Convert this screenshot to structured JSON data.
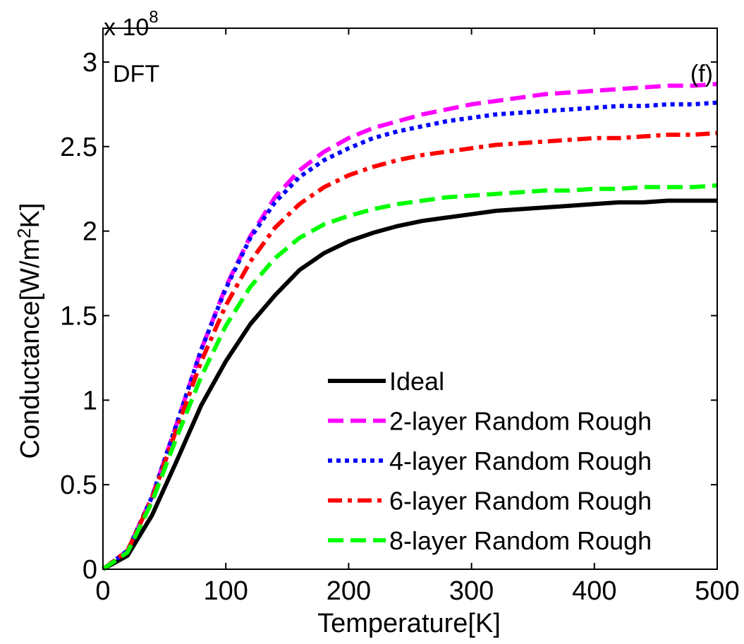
{
  "chart_data": {
    "type": "line",
    "title": "",
    "xlabel": "Temperature[K]",
    "ylabel_parts": {
      "before": "Conductance[W/m",
      "sup": "2",
      "after": "K]"
    },
    "exponent_label": {
      "base": "x 10",
      "power": "8"
    },
    "annotations": {
      "left": "DFT",
      "right": "(f)"
    },
    "xlim": [
      0,
      500
    ],
    "ylim": [
      0,
      3.2
    ],
    "x_ticks": [
      0,
      100,
      200,
      300,
      400,
      500
    ],
    "x_tick_labels": [
      "0",
      "100",
      "200",
      "300",
      "400",
      "500"
    ],
    "y_ticks": [
      0,
      0.5,
      1,
      1.5,
      2,
      2.5,
      3
    ],
    "y_tick_labels": [
      "0",
      "0.5",
      "1",
      "1.5",
      "2",
      "2.5",
      "3"
    ],
    "y_scale_note": "values in units of 10^8",
    "grid": false,
    "legend_position": "bottom-right",
    "x": [
      0,
      20,
      40,
      60,
      80,
      100,
      120,
      140,
      160,
      180,
      200,
      220,
      240,
      260,
      280,
      300,
      320,
      340,
      360,
      380,
      400,
      420,
      440,
      460,
      480,
      500
    ],
    "series": [
      {
        "name": "Ideal",
        "color": "#000000",
        "style": "solid",
        "values": [
          0.0,
          0.08,
          0.32,
          0.64,
          0.97,
          1.23,
          1.45,
          1.62,
          1.77,
          1.87,
          1.94,
          1.99,
          2.03,
          2.06,
          2.08,
          2.1,
          2.12,
          2.13,
          2.14,
          2.15,
          2.16,
          2.17,
          2.17,
          2.18,
          2.18,
          2.18
        ]
      },
      {
        "name": "2-layer Random Rough",
        "color": "#ff00ff",
        "style": "dashed",
        "values": [
          0.0,
          0.11,
          0.43,
          0.86,
          1.3,
          1.67,
          1.97,
          2.2,
          2.36,
          2.47,
          2.55,
          2.61,
          2.65,
          2.69,
          2.72,
          2.75,
          2.77,
          2.79,
          2.81,
          2.82,
          2.83,
          2.84,
          2.85,
          2.86,
          2.86,
          2.87
        ]
      },
      {
        "name": "4-layer Random Rough",
        "color": "#0000ff",
        "style": "dotted",
        "values": [
          0.0,
          0.11,
          0.43,
          0.86,
          1.3,
          1.66,
          1.96,
          2.17,
          2.32,
          2.42,
          2.49,
          2.55,
          2.59,
          2.62,
          2.65,
          2.67,
          2.69,
          2.7,
          2.71,
          2.72,
          2.73,
          2.74,
          2.74,
          2.75,
          2.75,
          2.76
        ]
      },
      {
        "name": "6-layer Random Rough",
        "color": "#ff0000",
        "style": "dashdot",
        "values": [
          0.0,
          0.11,
          0.42,
          0.83,
          1.23,
          1.56,
          1.82,
          2.02,
          2.16,
          2.26,
          2.33,
          2.38,
          2.42,
          2.45,
          2.47,
          2.49,
          2.51,
          2.52,
          2.53,
          2.54,
          2.55,
          2.55,
          2.56,
          2.57,
          2.57,
          2.58
        ]
      },
      {
        "name": "8-layer Random Rough",
        "color": "#00ff00",
        "style": "dashed",
        "values": [
          0.0,
          0.1,
          0.4,
          0.78,
          1.14,
          1.44,
          1.67,
          1.84,
          1.96,
          2.04,
          2.09,
          2.13,
          2.16,
          2.18,
          2.2,
          2.21,
          2.22,
          2.23,
          2.24,
          2.24,
          2.25,
          2.25,
          2.26,
          2.26,
          2.26,
          2.27
        ]
      }
    ]
  }
}
